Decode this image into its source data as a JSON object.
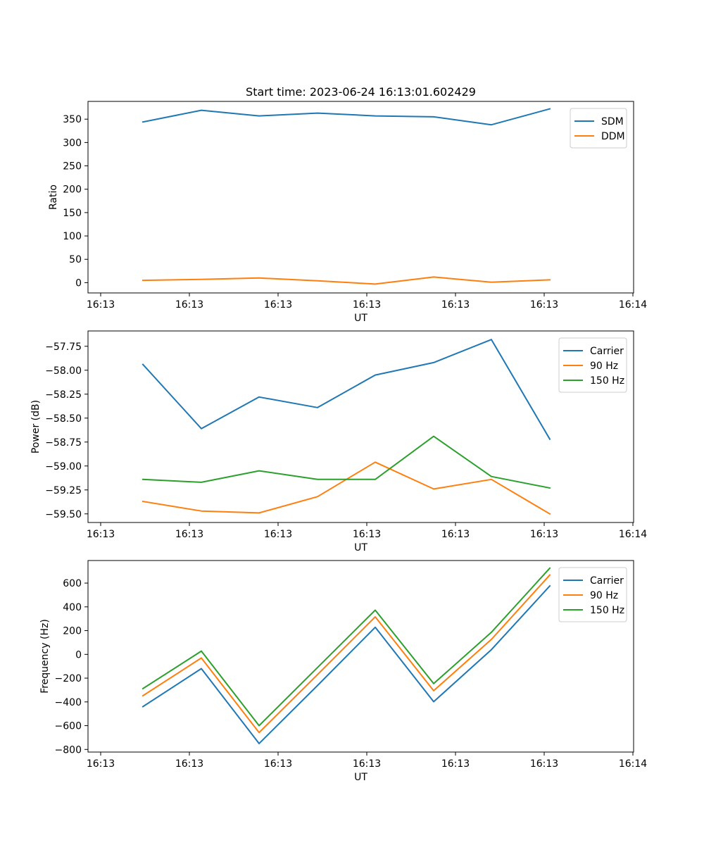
{
  "figure": {
    "title": "Start time: 2023-06-24 16:13:01.602429"
  },
  "chart_data": [
    {
      "type": "line",
      "title": "Start time: 2023-06-24 16:13:01.602429",
      "xlabel": "UT",
      "ylabel": "Ratio",
      "x_tick_labels": [
        "16:13",
        "16:13",
        "16:13",
        "16:13",
        "16:13",
        "16:13",
        "16:14"
      ],
      "y_ticks": [
        0,
        50,
        100,
        150,
        200,
        250,
        300,
        350
      ],
      "ylim": [
        -22,
        388
      ],
      "legend_position": "top-right",
      "series": [
        {
          "name": "SDM",
          "color": "#1f77b4",
          "values": [
            344,
            369,
            357,
            363,
            357,
            355,
            338,
            372
          ]
        },
        {
          "name": "DDM",
          "color": "#ff7f0e",
          "values": [
            5,
            7,
            10,
            4,
            -3,
            12,
            1,
            6
          ]
        }
      ]
    },
    {
      "type": "line",
      "title": "",
      "xlabel": "UT",
      "ylabel": "Power (dB)",
      "x_tick_labels": [
        "16:13",
        "16:13",
        "16:13",
        "16:13",
        "16:13",
        "16:13",
        "16:14"
      ],
      "y_ticks": [
        -59.5,
        -59.25,
        -59.0,
        -58.75,
        -58.5,
        -58.25,
        -58.0,
        -57.75
      ],
      "y_tick_labels": [
        "−59.50",
        "−59.25",
        "−59.00",
        "−58.75",
        "−58.50",
        "−58.25",
        "−58.00",
        "−57.75"
      ],
      "ylim": [
        -59.59,
        -57.59
      ],
      "legend_position": "top-right",
      "series": [
        {
          "name": "Carrier",
          "color": "#1f77b4",
          "values": [
            -57.94,
            -58.61,
            -58.28,
            -58.39,
            -58.05,
            -57.92,
            -57.68,
            -58.72
          ]
        },
        {
          "name": "90 Hz",
          "color": "#ff7f0e",
          "values": [
            -59.37,
            -59.47,
            -59.49,
            -59.32,
            -58.96,
            -59.24,
            -59.14,
            -59.5
          ]
        },
        {
          "name": "150 Hz",
          "color": "#2ca02c",
          "values": [
            -59.14,
            -59.17,
            -59.05,
            -59.14,
            -59.14,
            -58.69,
            -59.11,
            -59.23
          ]
        }
      ]
    },
    {
      "type": "line",
      "title": "",
      "xlabel": "UT",
      "ylabel": "Frequency (Hz)",
      "x_tick_labels": [
        "16:13",
        "16:13",
        "16:13",
        "16:13",
        "16:13",
        "16:13",
        "16:14"
      ],
      "y_ticks": [
        -800,
        -600,
        -400,
        -200,
        0,
        200,
        400,
        600
      ],
      "y_tick_labels": [
        "−800",
        "−600",
        "−400",
        "−200",
        "0",
        "200",
        "400",
        "600"
      ],
      "ylim": [
        -822,
        790
      ],
      "legend_position": "top-right",
      "series": [
        {
          "name": "Carrier",
          "color": "#1f77b4",
          "values": [
            -440,
            -120,
            -750,
            -262,
            228,
            -398,
            40,
            576
          ]
        },
        {
          "name": "90 Hz",
          "color": "#ff7f0e",
          "values": [
            -348,
            -30,
            -658,
            -170,
            316,
            -306,
            126,
            668
          ]
        },
        {
          "name": "150 Hz",
          "color": "#2ca02c",
          "values": [
            -288,
            28,
            -600,
            -110,
            372,
            -246,
            186,
            726
          ]
        }
      ]
    }
  ]
}
